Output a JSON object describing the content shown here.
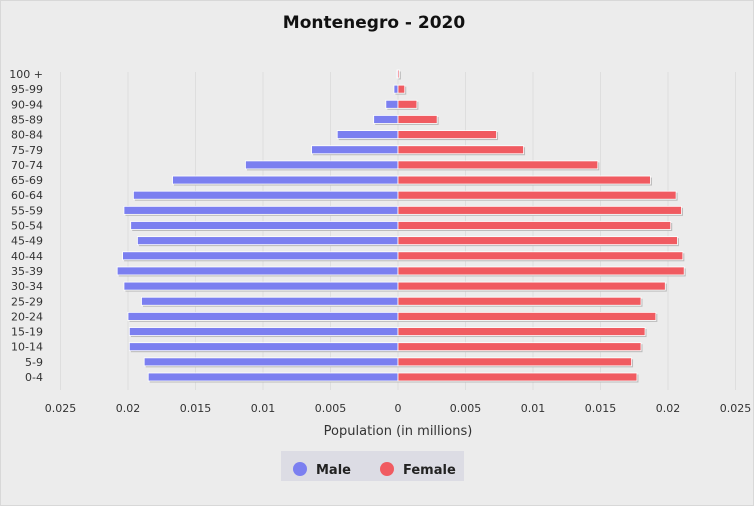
{
  "colors": {
    "male": "#7b7ff0",
    "female": "#f05b61",
    "background": "#ececec",
    "legend_bg": "#dcdce4"
  },
  "chart_data": {
    "type": "bar",
    "orientation": "horizontal",
    "title": "Montenegro - 2020",
    "xlabel": "Population (in millions)",
    "ylabel": "",
    "xlim": [
      -0.025,
      0.025
    ],
    "x_ticks": [
      "0.025",
      "0.02",
      "0.015",
      "0.01",
      "0.005",
      "0",
      "0.005",
      "0.01",
      "0.015",
      "0.02",
      "0.025"
    ],
    "grid": "vertical",
    "legend_position": "bottom",
    "categories": [
      "0-4",
      "5-9",
      "10-14",
      "15-19",
      "20-24",
      "25-29",
      "30-34",
      "35-39",
      "40-44",
      "45-49",
      "50-54",
      "55-59",
      "60-64",
      "65-69",
      "70-74",
      "75-79",
      "80-84",
      "85-89",
      "90-94",
      "95-99",
      "100 +"
    ],
    "series": [
      {
        "name": "Male",
        "values": [
          0.0185,
          0.0188,
          0.0199,
          0.0199,
          0.02,
          0.019,
          0.0203,
          0.0208,
          0.0204,
          0.0193,
          0.0198,
          0.0203,
          0.0196,
          0.0167,
          0.0113,
          0.0064,
          0.0045,
          0.0018,
          0.0009,
          0.0003,
          5e-05
        ]
      },
      {
        "name": "Female",
        "values": [
          0.0177,
          0.0173,
          0.018,
          0.0183,
          0.0191,
          0.018,
          0.0198,
          0.0212,
          0.0211,
          0.0207,
          0.0202,
          0.021,
          0.0206,
          0.0187,
          0.0148,
          0.0093,
          0.0073,
          0.0029,
          0.0014,
          0.0005,
          0.0001
        ]
      }
    ]
  }
}
